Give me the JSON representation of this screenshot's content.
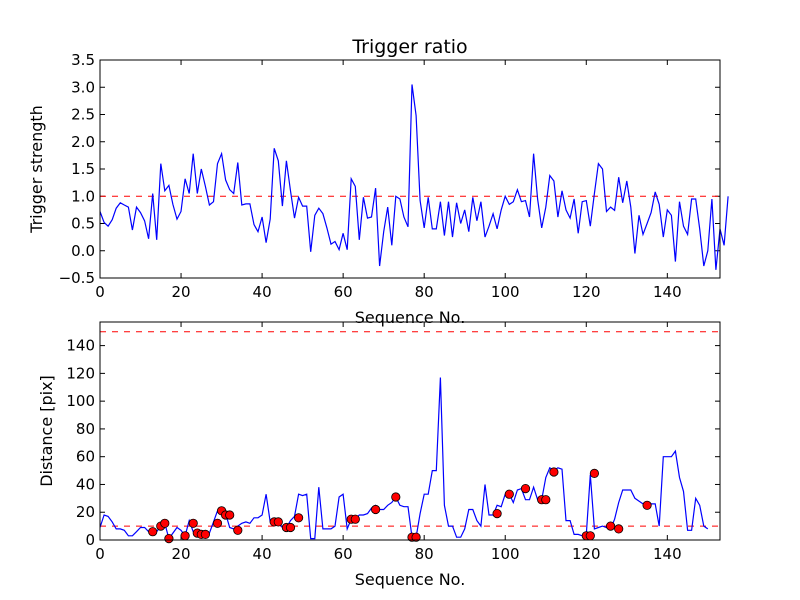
{
  "chart_data": [
    {
      "type": "line",
      "title": "Trigger ratio",
      "xlabel": "Sequence No.",
      "ylabel": "Trigger strength",
      "xlim": [
        0,
        153
      ],
      "ylim": [
        -0.5,
        3.5
      ],
      "xticks": [
        0,
        20,
        40,
        60,
        80,
        100,
        120,
        140
      ],
      "yticks": [
        -0.5,
        0.0,
        0.5,
        1.0,
        1.5,
        2.0,
        2.5,
        3.0,
        3.5
      ],
      "ytick_labels": [
        "−0.5",
        "0.0",
        "0.5",
        "1.0",
        "1.5",
        "2.0",
        "2.5",
        "3.0",
        "3.5"
      ],
      "threshold": 1.0,
      "series": [
        {
          "name": "trigger strength",
          "color": "#0000ff",
          "values": [
            0.72,
            0.52,
            0.45,
            0.57,
            0.78,
            0.88,
            0.84,
            0.8,
            0.38,
            0.8,
            0.7,
            0.55,
            0.22,
            1.05,
            0.2,
            1.6,
            1.1,
            1.2,
            0.85,
            0.58,
            0.72,
            1.32,
            1.05,
            1.78,
            1.05,
            1.5,
            1.18,
            0.84,
            0.9,
            1.6,
            1.78,
            1.3,
            1.12,
            1.05,
            1.62,
            0.84,
            0.86,
            0.86,
            0.48,
            0.35,
            0.62,
            0.15,
            0.58,
            1.88,
            1.65,
            0.82,
            1.65,
            1.1,
            0.6,
            0.98,
            0.82,
            0.82,
            -0.02,
            0.65,
            0.78,
            0.68,
            0.42,
            0.12,
            0.17,
            0.02,
            0.32,
            0.02,
            1.32,
            1.18,
            0.2,
            0.98,
            0.6,
            0.62,
            1.15,
            -0.28,
            0.35,
            0.8,
            0.1,
            1.0,
            0.95,
            0.62,
            0.44,
            3.05,
            2.48,
            0.92,
            0.42,
            0.98,
            0.4,
            0.4,
            0.9,
            0.28,
            0.9,
            0.25,
            0.88,
            0.5,
            0.75,
            0.35,
            0.98,
            0.55,
            0.9,
            0.25,
            0.45,
            0.68,
            0.4,
            0.75,
            1.0,
            0.85,
            0.9,
            1.12,
            0.9,
            0.92,
            0.62,
            1.78,
            0.95,
            0.42,
            0.8,
            1.38,
            1.28,
            0.62,
            1.1,
            0.75,
            0.6,
            0.95,
            0.32,
            0.9,
            0.92,
            0.45,
            1.05,
            1.6,
            1.5,
            0.72,
            0.8,
            0.74,
            1.35,
            0.88,
            1.28,
            0.8,
            -0.05,
            0.65,
            0.3,
            0.5,
            0.7,
            1.08,
            0.85,
            0.25,
            0.75,
            0.65,
            -0.2,
            0.9,
            0.45,
            0.3,
            0.95,
            0.95,
            0.4,
            -0.28,
            0.0,
            0.95,
            -0.35,
            0.4,
            0.1,
            1.0
          ]
        }
      ]
    },
    {
      "type": "line",
      "title": "",
      "xlabel": "Sequence No.",
      "ylabel": "Distance [pix]",
      "xlim": [
        0,
        153
      ],
      "ylim": [
        0,
        157
      ],
      "xticks": [
        0,
        20,
        40,
        60,
        80,
        100,
        120,
        140
      ],
      "yticks": [
        0,
        20,
        40,
        60,
        80,
        100,
        120,
        140
      ],
      "thresholds": [
        150,
        10
      ],
      "series": [
        {
          "name": "distance",
          "color": "#0000ff",
          "values": [
            9,
            18,
            17,
            13,
            8,
            8,
            7,
            3,
            3,
            6,
            9,
            9,
            6,
            6,
            6,
            10,
            12,
            1,
            5,
            9,
            7,
            3,
            14,
            6,
            5,
            2,
            6,
            5,
            13,
            21,
            20,
            19,
            9,
            8,
            10,
            12,
            13,
            12,
            16,
            16,
            18,
            33,
            13,
            13,
            13,
            9,
            9,
            14,
            17,
            33,
            32,
            33,
            1,
            1,
            38,
            8,
            8,
            8,
            10,
            31,
            33,
            8,
            15,
            15,
            18,
            18,
            19,
            23,
            25,
            22,
            22,
            25,
            27,
            31,
            25,
            24,
            24,
            2,
            2,
            19,
            33,
            33,
            50,
            50,
            117,
            25,
            10,
            10,
            2,
            2,
            8,
            22,
            22,
            14,
            10,
            40,
            18,
            18,
            25,
            24,
            33,
            33,
            27,
            36,
            37,
            29,
            29,
            38,
            29,
            29,
            45,
            52,
            50,
            52,
            51,
            14,
            14,
            4,
            4,
            3,
            4,
            47,
            8,
            9,
            10,
            9,
            8,
            15,
            27,
            36,
            36,
            36,
            30,
            28,
            26,
            26,
            26,
            26,
            10,
            60,
            60,
            60,
            64,
            45,
            35,
            7,
            7,
            30,
            25,
            10,
            8
          ]
        },
        {
          "name": "flagged",
          "marker": "circle",
          "color": "#ff0000",
          "points": [
            [
              13,
              6
            ],
            [
              15,
              10
            ],
            [
              16,
              12
            ],
            [
              17,
              1
            ],
            [
              21,
              3
            ],
            [
              23,
              12
            ],
            [
              24,
              5
            ],
            [
              25,
              4
            ],
            [
              26,
              4
            ],
            [
              29,
              12
            ],
            [
              30,
              21
            ],
            [
              31,
              18
            ],
            [
              32,
              18
            ],
            [
              34,
              7
            ],
            [
              43,
              13
            ],
            [
              44,
              13
            ],
            [
              46,
              9
            ],
            [
              47,
              9
            ],
            [
              49,
              16
            ],
            [
              62,
              15
            ],
            [
              63,
              15
            ],
            [
              68,
              22
            ],
            [
              73,
              31
            ],
            [
              77,
              2
            ],
            [
              78,
              2
            ],
            [
              98,
              19
            ],
            [
              101,
              33
            ],
            [
              105,
              37
            ],
            [
              109,
              29
            ],
            [
              110,
              29
            ],
            [
              112,
              49
            ],
            [
              120,
              3
            ],
            [
              121,
              3
            ],
            [
              122,
              48
            ],
            [
              126,
              10
            ],
            [
              128,
              8
            ],
            [
              135,
              25
            ]
          ]
        }
      ]
    }
  ]
}
